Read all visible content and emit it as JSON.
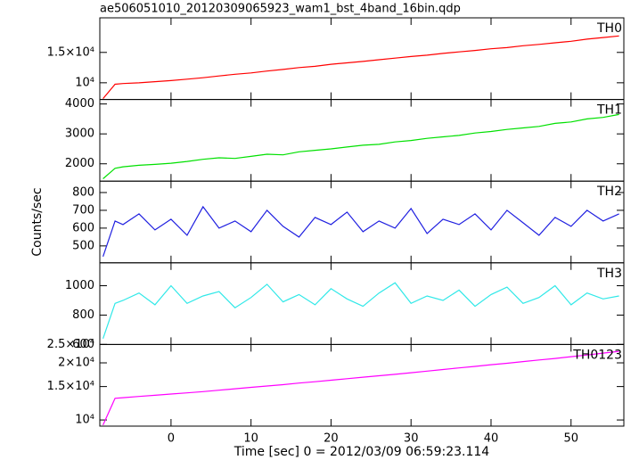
{
  "chart_data": [
    {
      "type": "line",
      "title": "ae506051010_20120309065923_wam1_bst_4band_16bin.qdp",
      "log": true,
      "xlim": [
        -8.9,
        56.6
      ],
      "xticks": [
        0,
        10,
        20,
        30,
        40,
        50
      ],
      "ylim": [
        8000,
        23800
      ],
      "yticks": [
        {
          "value": 10000,
          "label": "10⁴"
        },
        {
          "value": 15000,
          "label": "1.5×10⁴"
        }
      ],
      "x": [
        -8.5,
        -7,
        -6,
        -4,
        -2,
        0,
        2,
        4,
        6,
        8,
        10,
        12,
        14,
        16,
        18,
        20,
        22,
        24,
        26,
        28,
        30,
        32,
        34,
        36,
        38,
        40,
        42,
        44,
        46,
        48,
        50,
        52,
        54,
        56
      ],
      "series": [
        {
          "name": "TH0",
          "color": "#ff0000",
          "values": [
            8100,
            9800,
            9900,
            10000,
            10150,
            10300,
            10500,
            10700,
            10950,
            11200,
            11400,
            11700,
            11950,
            12250,
            12450,
            12800,
            13050,
            13300,
            13600,
            13900,
            14200,
            14450,
            14800,
            15100,
            15400,
            15750,
            16000,
            16400,
            16700,
            17050,
            17400,
            17900,
            18300,
            18700
          ]
        }
      ]
    },
    {
      "type": "line",
      "log": false,
      "xlim": [
        -8.9,
        56.6
      ],
      "xticks": [
        0,
        10,
        20,
        30,
        40,
        50
      ],
      "ylim": [
        1420,
        4150
      ],
      "yticks": [
        2000,
        3000,
        4000
      ],
      "x": [
        -8.5,
        -7,
        -6,
        -4,
        -2,
        0,
        2,
        4,
        6,
        8,
        10,
        12,
        14,
        16,
        18,
        20,
        22,
        24,
        26,
        28,
        30,
        32,
        34,
        36,
        38,
        40,
        42,
        44,
        46,
        48,
        50,
        52,
        54,
        56
      ],
      "series": [
        {
          "name": "TH1",
          "color": "#00e000",
          "values": [
            1500,
            1850,
            1900,
            1950,
            1980,
            2020,
            2080,
            2150,
            2200,
            2180,
            2250,
            2320,
            2300,
            2400,
            2450,
            2500,
            2560,
            2620,
            2650,
            2730,
            2780,
            2850,
            2900,
            2950,
            3030,
            3080,
            3150,
            3200,
            3250,
            3350,
            3400,
            3500,
            3550,
            3650
          ]
        }
      ]
    },
    {
      "type": "line",
      "log": false,
      "ylabel": "Counts/sec",
      "xlim": [
        -8.9,
        56.6
      ],
      "xticks": [
        0,
        10,
        20,
        30,
        40,
        50
      ],
      "ylim": [
        405,
        864
      ],
      "yticks": [
        500,
        600,
        700,
        800
      ],
      "x": [
        -8.5,
        -7,
        -6,
        -4,
        -2,
        0,
        2,
        4,
        6,
        8,
        10,
        12,
        14,
        16,
        18,
        20,
        22,
        24,
        26,
        28,
        30,
        32,
        34,
        36,
        38,
        40,
        42,
        44,
        46,
        48,
        50,
        52,
        54,
        56
      ],
      "series": [
        {
          "name": "TH2",
          "color": "#2020e0",
          "values": [
            440,
            640,
            620,
            680,
            590,
            650,
            560,
            720,
            600,
            640,
            580,
            700,
            610,
            550,
            660,
            620,
            690,
            580,
            640,
            600,
            710,
            570,
            650,
            620,
            680,
            590,
            700,
            630,
            560,
            660,
            610,
            700,
            640,
            680
          ]
        }
      ]
    },
    {
      "type": "line",
      "log": false,
      "xlim": [
        -8.9,
        56.6
      ],
      "xticks": [
        0,
        10,
        20,
        30,
        40,
        50
      ],
      "ylim": [
        600,
        1156
      ],
      "yticks": [
        600,
        800,
        1000
      ],
      "x": [
        -8.5,
        -7,
        -6,
        -4,
        -2,
        0,
        2,
        4,
        6,
        8,
        10,
        12,
        14,
        16,
        18,
        20,
        22,
        24,
        26,
        28,
        30,
        32,
        34,
        36,
        38,
        40,
        42,
        44,
        46,
        48,
        50,
        52,
        54,
        56
      ],
      "series": [
        {
          "name": "TH3",
          "color": "#30e8e8",
          "values": [
            640,
            880,
            900,
            950,
            870,
            1000,
            880,
            930,
            960,
            850,
            920,
            1010,
            890,
            940,
            870,
            980,
            910,
            860,
            950,
            1020,
            880,
            930,
            900,
            970,
            860,
            940,
            990,
            880,
            920,
            1000,
            870,
            950,
            910,
            930
          ]
        }
      ]
    },
    {
      "type": "line",
      "log": true,
      "xlabel": "Time [sec] 0 = 2012/03/09 06:59:23.114",
      "xlim": [
        -8.9,
        56.6
      ],
      "xticks": [
        0,
        10,
        20,
        30,
        40,
        50
      ],
      "ylim": [
        9280,
        25000
      ],
      "yticks": [
        {
          "value": 10000,
          "label": "10⁴"
        },
        {
          "value": 15000,
          "label": "1.5×10⁴"
        },
        {
          "value": 20000,
          "label": "2×10⁴"
        },
        {
          "value": 25000,
          "label": "2.5×10⁴"
        }
      ],
      "x": [
        -8.5,
        -7,
        -6,
        -4,
        -2,
        0,
        2,
        4,
        6,
        8,
        10,
        12,
        14,
        16,
        18,
        20,
        22,
        24,
        26,
        28,
        30,
        32,
        34,
        36,
        38,
        40,
        42,
        44,
        46,
        48,
        50,
        52,
        54,
        56
      ],
      "series": [
        {
          "name": "TH0123",
          "color": "#ff00ff",
          "values": [
            9400,
            13000,
            13100,
            13300,
            13500,
            13700,
            13900,
            14100,
            14350,
            14600,
            14850,
            15100,
            15350,
            15650,
            15900,
            16200,
            16500,
            16800,
            17100,
            17400,
            17750,
            18100,
            18450,
            18800,
            19150,
            19550,
            19900,
            20300,
            20700,
            21100,
            21550,
            22000,
            22500,
            23000
          ]
        }
      ]
    }
  ]
}
